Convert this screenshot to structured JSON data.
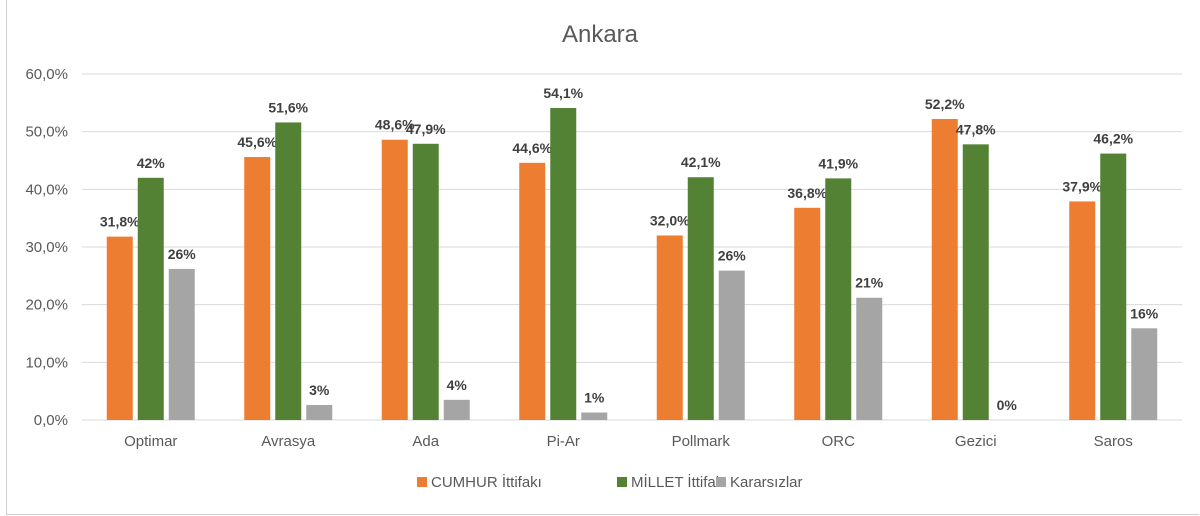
{
  "chart_data": {
    "type": "bar",
    "title": "Ankara",
    "xlabel": "",
    "ylabel": "",
    "ylim": [
      0,
      60
    ],
    "yticks": [
      "0,0%",
      "10,0%",
      "20,0%",
      "30,0%",
      "40,0%",
      "50,0%",
      "60,0%"
    ],
    "grid": true,
    "legend_position": "bottom",
    "categories": [
      "Optimar",
      "Avrasya",
      "Ada",
      "Pi-Ar",
      "Pollmark",
      "ORC",
      "Gezici",
      "Saros"
    ],
    "series": [
      {
        "name": "CUMHUR İttifakı",
        "color": "#ED7D31",
        "values": [
          31.8,
          45.6,
          48.6,
          44.6,
          32.0,
          36.8,
          52.2,
          37.9
        ],
        "labels": [
          "31,8%",
          "45,6%",
          "48,6%",
          "44,6%",
          "32,0%",
          "36,8%",
          "52,2%",
          "37,9%"
        ]
      },
      {
        "name": "MİLLET İttifakı",
        "color": "#548235",
        "values": [
          42,
          51.6,
          47.9,
          54.1,
          42.1,
          41.9,
          47.8,
          46.2
        ],
        "labels": [
          "42%",
          "51,6%",
          "47,9%",
          "54,1%",
          "42,1%",
          "41,9%",
          "47,8%",
          "46,2%"
        ]
      },
      {
        "name": "Kararsızlar",
        "color": "#A5A5A5",
        "values": [
          26.2,
          2.6,
          3.5,
          1.3,
          25.9,
          21.2,
          0,
          15.9
        ],
        "labels": [
          "26%",
          "3%",
          "4%",
          "1%",
          "26%",
          "21%",
          "0%",
          "16%"
        ]
      }
    ]
  }
}
